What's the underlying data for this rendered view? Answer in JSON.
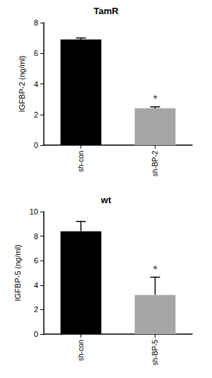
{
  "chart_data": [
    {
      "type": "bar",
      "title": "TamR",
      "y_label": "IGFBP-2 (ng/ml)",
      "categories": [
        "sh-con",
        "sh-BP-2"
      ],
      "values": [
        6.9,
        2.4
      ],
      "errors": [
        0.1,
        0.1
      ],
      "colors": [
        "#000000",
        "#a6a6a6"
      ],
      "ylim": [
        0,
        8
      ],
      "yticks": [
        0,
        2,
        4,
        6,
        8
      ],
      "grid": false,
      "annotations": [
        {
          "text": "*",
          "category": "sh-BP-2"
        }
      ]
    },
    {
      "type": "bar",
      "title": "wt",
      "y_label": "IGFBP-5 (ng/ml)",
      "categories": [
        "sh-con",
        "sh-BP-5"
      ],
      "values": [
        8.4,
        3.2
      ],
      "errors": [
        0.8,
        1.45
      ],
      "colors": [
        "#000000",
        "#a6a6a6"
      ],
      "ylim": [
        0,
        10
      ],
      "yticks": [
        0,
        2,
        4,
        6,
        8,
        10
      ],
      "grid": false,
      "annotations": [
        {
          "text": "*",
          "category": "sh-BP-5"
        }
      ]
    }
  ]
}
